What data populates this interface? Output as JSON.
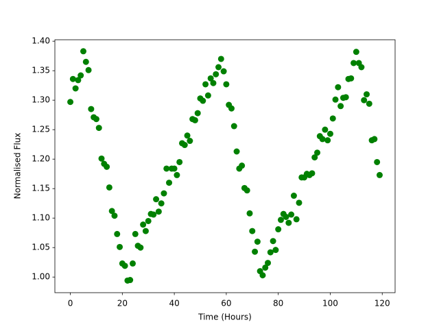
{
  "chart_data": {
    "type": "scatter",
    "xlabel": "Time (Hours)",
    "ylabel": "Normalised Flux",
    "color": "#008000",
    "x": [
      0,
      1,
      2,
      3,
      4,
      5,
      6,
      7,
      8,
      9,
      10,
      11,
      12,
      13,
      14,
      15,
      16,
      17,
      18,
      19,
      20,
      21,
      22,
      23,
      24,
      25,
      26,
      27,
      28,
      29,
      30,
      31,
      32,
      33,
      34,
      35,
      36,
      37,
      38,
      39,
      40,
      41,
      42,
      43,
      44,
      45,
      46,
      47,
      48,
      49,
      50,
      51,
      52,
      53,
      54,
      55,
      56,
      57,
      58,
      59,
      60,
      61,
      62,
      63,
      64,
      65,
      66,
      67,
      68,
      69,
      70,
      71,
      72,
      73,
      74,
      75,
      76,
      77,
      78,
      79,
      80,
      81,
      82,
      83,
      84,
      85,
      86,
      87,
      88,
      89,
      90,
      91,
      92,
      93,
      94,
      95,
      96,
      97,
      98,
      99,
      100,
      101,
      102,
      103,
      104,
      105,
      106,
      107,
      108,
      109,
      110,
      111,
      112,
      113,
      114,
      115,
      116,
      117,
      118,
      119
    ],
    "values": [
      1.297,
      1.336,
      1.32,
      1.334,
      1.342,
      1.383,
      1.365,
      1.351,
      1.285,
      1.271,
      1.268,
      1.253,
      1.201,
      1.192,
      1.187,
      1.152,
      1.112,
      1.104,
      1.073,
      1.051,
      1.023,
      1.019,
      0.994,
      0.995,
      1.023,
      1.073,
      1.053,
      1.05,
      1.089,
      1.078,
      1.095,
      1.107,
      1.106,
      1.132,
      1.111,
      1.125,
      1.142,
      1.184,
      1.16,
      1.184,
      1.184,
      1.173,
      1.195,
      1.227,
      1.224,
      1.24,
      1.231,
      1.268,
      1.266,
      1.278,
      1.303,
      1.299,
      1.327,
      1.308,
      1.337,
      1.329,
      1.344,
      1.356,
      1.37,
      1.349,
      1.327,
      1.292,
      1.286,
      1.256,
      1.213,
      1.184,
      1.189,
      1.151,
      1.147,
      1.108,
      1.078,
      1.043,
      1.06,
      1.01,
      1.003,
      1.016,
      1.024,
      1.042,
      1.061,
      1.046,
      1.081,
      1.097,
      1.107,
      1.102,
      1.092,
      1.106,
      1.138,
      1.098,
      1.126,
      1.169,
      1.169,
      1.175,
      1.173,
      1.176,
      1.203,
      1.211,
      1.239,
      1.234,
      1.25,
      1.232,
      1.243,
      1.269,
      1.301,
      1.322,
      1.29,
      1.304,
      1.305,
      1.336,
      1.337,
      1.363,
      1.382,
      1.363,
      1.356,
      1.3,
      1.31,
      1.294,
      1.232,
      1.234,
      1.195,
      1.173
    ],
    "xlim": [
      -5.95,
      124.95
    ],
    "ylim": [
      0.9735,
      1.4025
    ],
    "xticks": [
      0,
      20,
      40,
      60,
      80,
      100,
      120
    ],
    "yticks": [
      {
        "value": 1.0,
        "label": "1.00"
      },
      1.05,
      {
        "value": 1.1,
        "label": "1.10"
      },
      1.15,
      {
        "value": 1.2,
        "label": "1.20"
      },
      1.25,
      {
        "value": 1.3,
        "label": "1.30"
      },
      1.35,
      {
        "value": 1.4,
        "label": "1.40"
      }
    ]
  }
}
